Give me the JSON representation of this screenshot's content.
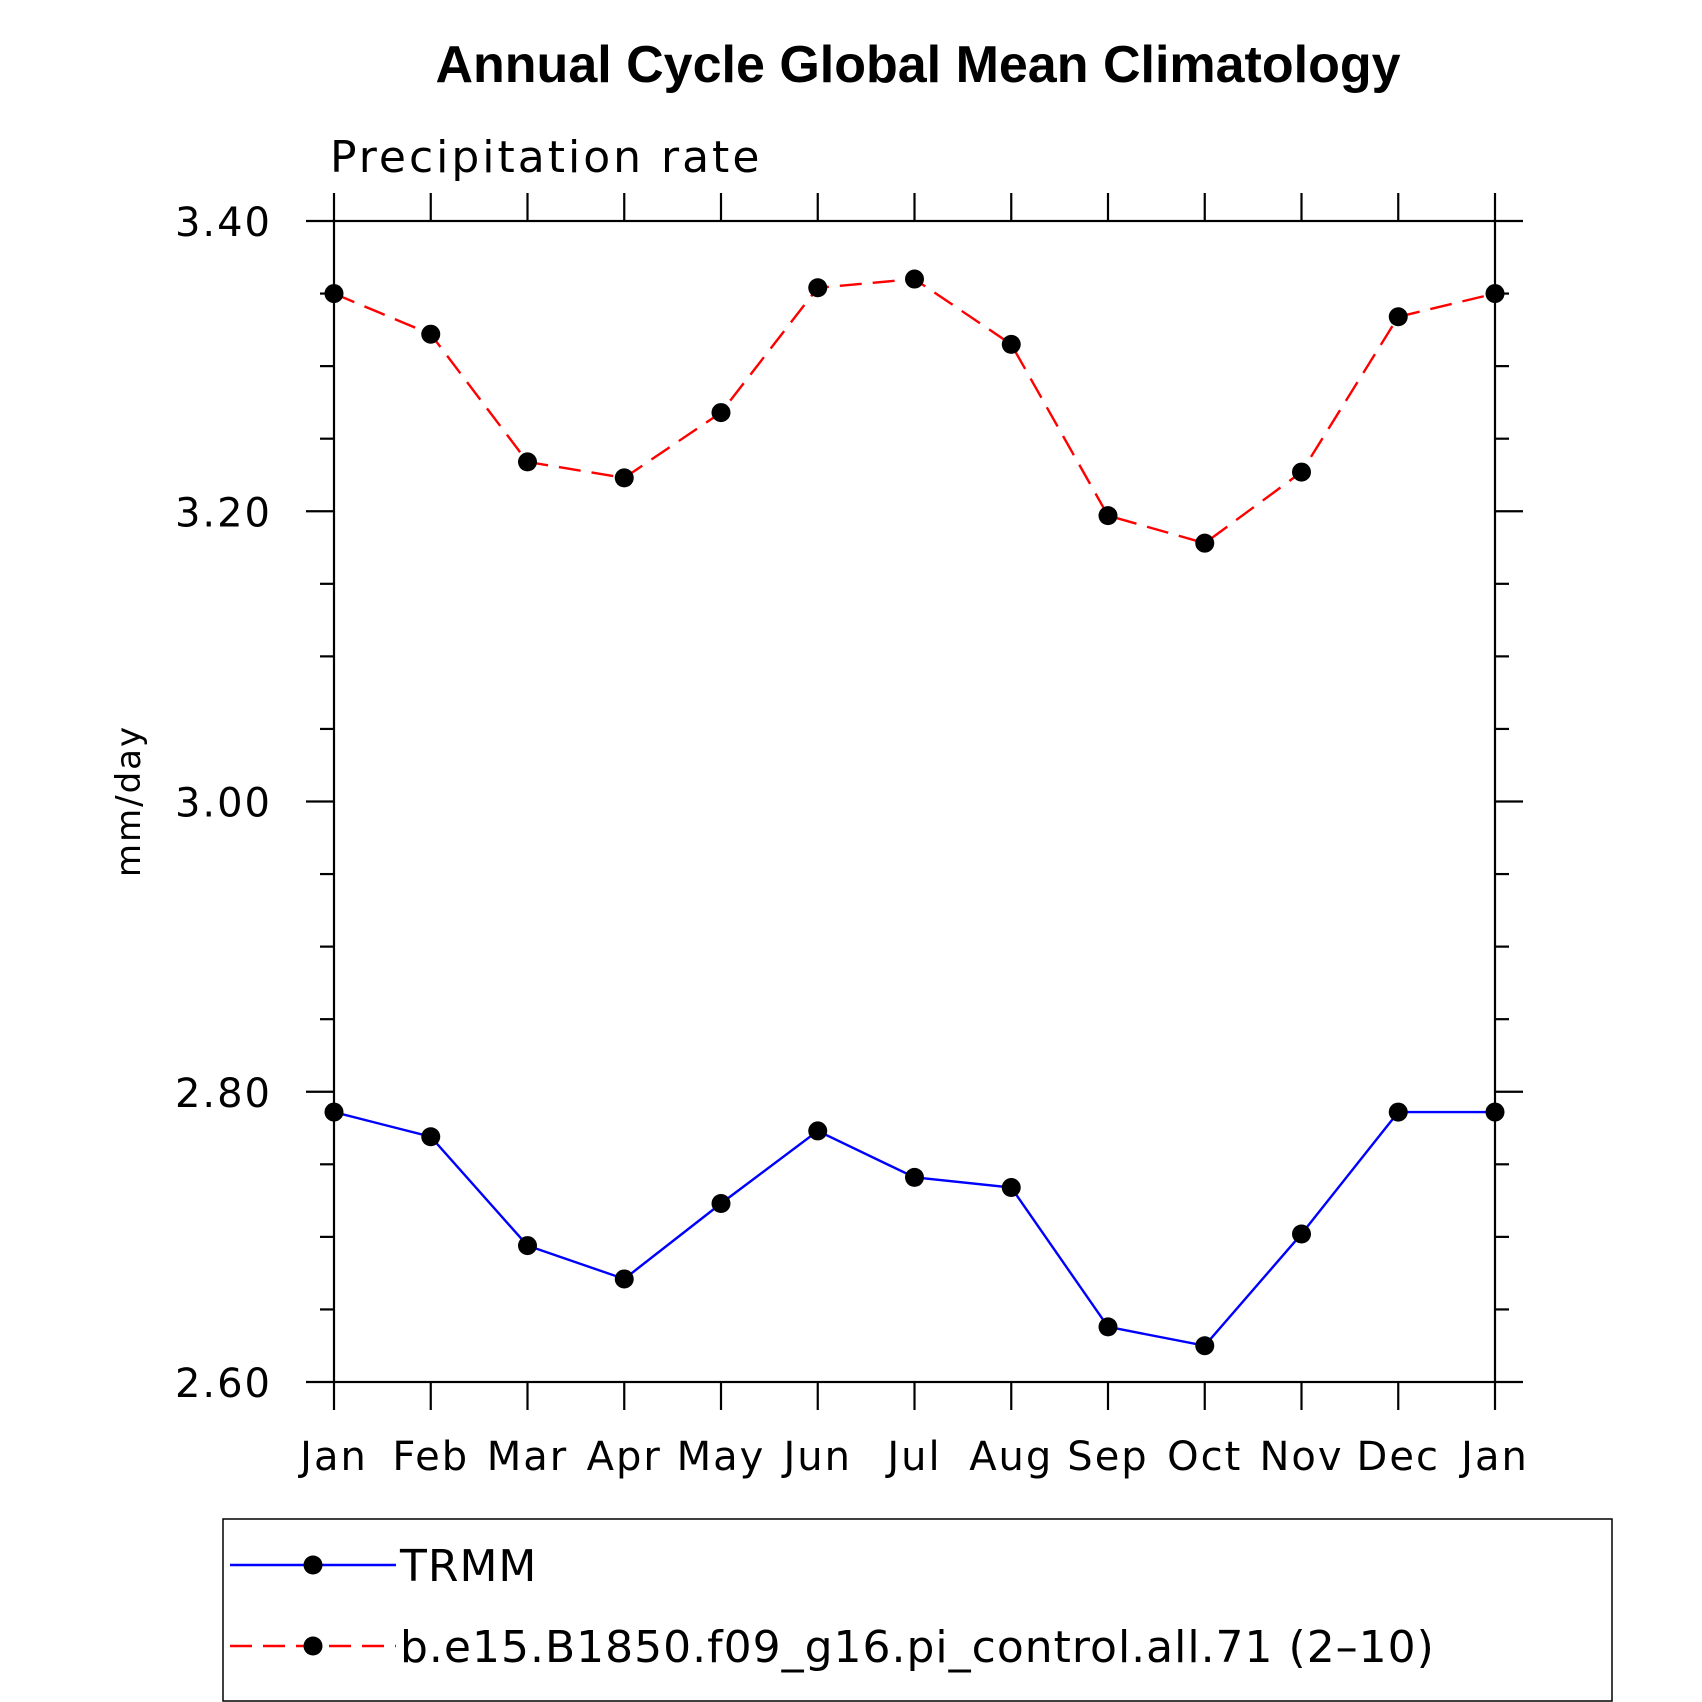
{
  "chart_data": {
    "type": "line",
    "title": "Annual Cycle Global Mean Climatology",
    "subtitle": "Precipitation rate",
    "ylabel": "mm/day",
    "xlabel": "",
    "categories": [
      "Jan",
      "Feb",
      "Mar",
      "Apr",
      "May",
      "Jun",
      "Jul",
      "Aug",
      "Sep",
      "Oct",
      "Nov",
      "Dec",
      "Jan"
    ],
    "ylim": [
      2.6,
      3.4
    ],
    "yticks": [
      "2.60",
      "2.80",
      "3.00",
      "3.20",
      "3.40"
    ],
    "y_minor_step": 0.05,
    "grid": false,
    "legend_position": "bottom",
    "series": [
      {
        "name": "TRMM",
        "color": "#0000ff",
        "line_style": "solid",
        "marker": "filled-circle",
        "values": [
          2.786,
          2.769,
          2.694,
          2.671,
          2.723,
          2.773,
          2.741,
          2.734,
          2.638,
          2.625,
          2.702,
          2.786,
          2.786
        ]
      },
      {
        "name": "b.e15.B1850.f09_g16.pi_control.all.71 (2–10)",
        "color": "#ff0000",
        "line_style": "dashed",
        "marker": "filled-circle",
        "values": [
          3.35,
          3.322,
          3.234,
          3.223,
          3.268,
          3.354,
          3.36,
          3.315,
          3.197,
          3.178,
          3.227,
          3.334,
          3.35
        ]
      }
    ]
  }
}
